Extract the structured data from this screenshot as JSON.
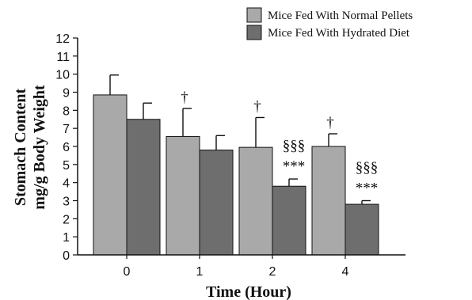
{
  "colors": {
    "normal": "#a9a9a9",
    "hydrated": "#6e6e6e",
    "axis": "#111111"
  },
  "chart_data": {
    "type": "bar",
    "categories": [
      "0",
      "1",
      "2",
      "4"
    ],
    "xlabel": "Time (Hour)",
    "ylabel": [
      "Stomach Content",
      "mg/g Body Weight"
    ],
    "ylim": [
      0,
      12
    ],
    "yticks": [
      "0",
      "1",
      "2",
      "3",
      "4",
      "5",
      "6",
      "7",
      "8",
      "9",
      "10",
      "11",
      "12"
    ],
    "grid": false,
    "legend_position": "top-right",
    "series": [
      {
        "name": "Mice Fed With Normal Pellets",
        "values": [
          8.85,
          6.55,
          5.95,
          6.0
        ],
        "errors": [
          1.1,
          1.55,
          1.65,
          0.7
        ]
      },
      {
        "name": "Mice Fed With Hydrated Diet",
        "values": [
          7.5,
          5.8,
          3.8,
          2.8
        ],
        "errors": [
          0.9,
          0.8,
          0.4,
          0.2
        ]
      }
    ],
    "annotations": [
      {
        "category_index": 1,
        "series_index": 0,
        "text": "†"
      },
      {
        "category_index": 2,
        "series_index": 0,
        "text": "†"
      },
      {
        "category_index": 3,
        "series_index": 0,
        "text": "†"
      },
      {
        "category_index": 2,
        "series_index": 1,
        "text": "§§§"
      },
      {
        "category_index": 2,
        "series_index": 1,
        "text": "***"
      },
      {
        "category_index": 3,
        "series_index": 1,
        "text": "§§§"
      },
      {
        "category_index": 3,
        "series_index": 1,
        "text": "***"
      }
    ]
  }
}
